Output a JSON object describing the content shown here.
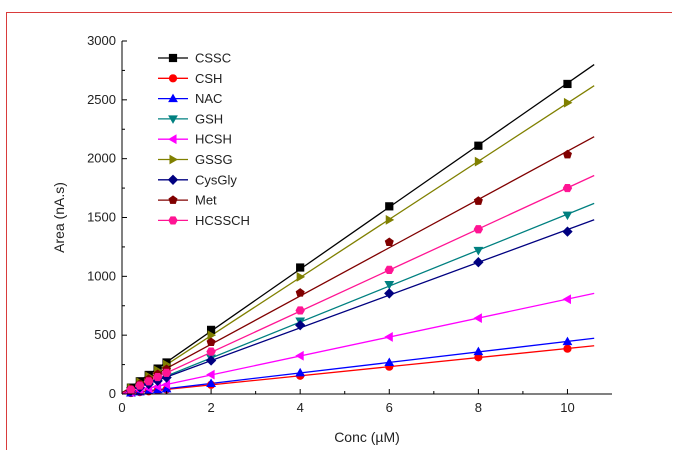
{
  "chart_data": {
    "type": "scatter",
    "xlabel": "Conc (µM)",
    "ylabel": "Area (nA.s)",
    "xlim": [
      0,
      11
    ],
    "ylim": [
      0,
      3000
    ],
    "xticks": [
      0,
      2,
      4,
      6,
      8,
      10
    ],
    "yticks": [
      0,
      500,
      1000,
      1500,
      2000,
      2500,
      3000
    ],
    "grid": false,
    "legend_position": "top-left",
    "x": [
      0.2,
      0.4,
      0.6,
      0.8,
      1,
      2,
      4,
      6,
      8,
      10
    ],
    "fit_line_x_end": 10.6,
    "series": [
      {
        "name": "CSSC",
        "color": "#000000",
        "marker": "square",
        "values": [
          54,
          108,
          162,
          216,
          268,
          545,
          1075,
          1595,
          2110,
          2635
        ]
      },
      {
        "name": "CSH",
        "color": "#ff0000",
        "marker": "circle",
        "values": [
          8,
          16,
          23,
          31,
          39,
          78,
          155,
          232,
          312,
          385
        ]
      },
      {
        "name": "NAC",
        "color": "#0000ff",
        "marker": "triangle-up",
        "values": [
          9,
          18,
          27,
          36,
          44,
          90,
          180,
          268,
          360,
          445
        ]
      },
      {
        "name": "GSH",
        "color": "#008080",
        "marker": "triangle-down",
        "values": [
          30,
          60,
          90,
          120,
          150,
          305,
          620,
          930,
          1220,
          1520
        ]
      },
      {
        "name": "HCSH",
        "color": "#ff00ff",
        "marker": "triangle-left",
        "values": [
          16,
          32,
          48,
          64,
          80,
          165,
          325,
          485,
          645,
          805
        ]
      },
      {
        "name": "GSSG",
        "color": "#808000",
        "marker": "triangle-right",
        "values": [
          50,
          100,
          150,
          200,
          250,
          500,
          995,
          1480,
          1975,
          2475
        ]
      },
      {
        "name": "CysGly",
        "color": "#000080",
        "marker": "diamond",
        "values": [
          28,
          56,
          84,
          112,
          140,
          285,
          585,
          855,
          1120,
          1380
        ]
      },
      {
        "name": "Met",
        "color": "#800000",
        "marker": "pentagon",
        "values": [
          42,
          84,
          126,
          168,
          210,
          440,
          860,
          1290,
          1640,
          2035
        ]
      },
      {
        "name": "HCSSCH",
        "color": "#ff1493",
        "marker": "hexagon",
        "values": [
          36,
          72,
          108,
          144,
          180,
          360,
          710,
          1055,
          1400,
          1750
        ]
      }
    ]
  }
}
